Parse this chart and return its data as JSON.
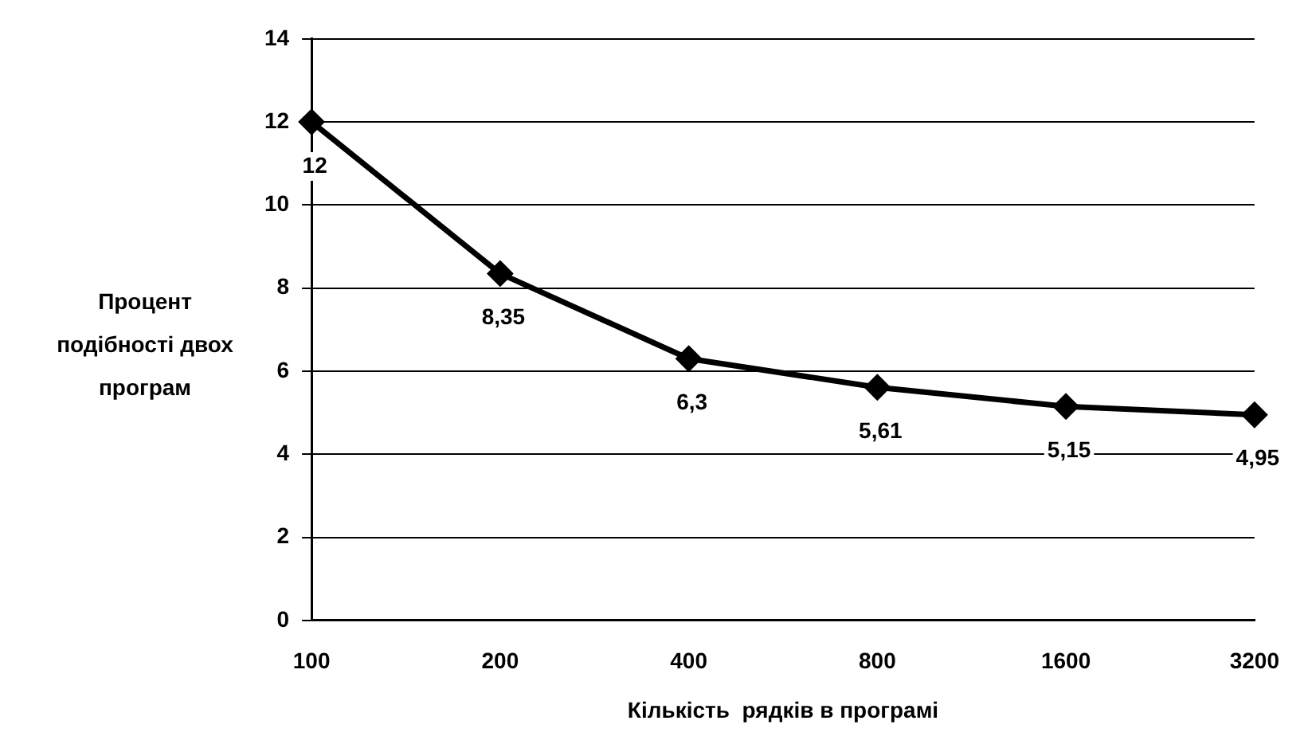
{
  "chart_data": {
    "type": "line",
    "xlabel": "Кількість  рядків в програмі",
    "ylabel": "Процент подібності двох програм",
    "categories": [
      "100",
      "200",
      "400",
      "800",
      "1600",
      "3200"
    ],
    "series": [
      {
        "color": "#000000",
        "values": [
          12,
          8.35,
          6.3,
          5.61,
          5.15,
          4.95
        ],
        "value_labels": [
          "12",
          "8,35",
          "6,3",
          "5,61",
          "5,15",
          "4,95"
        ]
      }
    ],
    "ylim": [
      0,
      14
    ],
    "yticks": [
      0,
      2,
      4,
      6,
      8,
      10,
      12,
      14
    ],
    "grid": "y",
    "legend": false,
    "marker": "diamond",
    "line_style": "solid"
  }
}
